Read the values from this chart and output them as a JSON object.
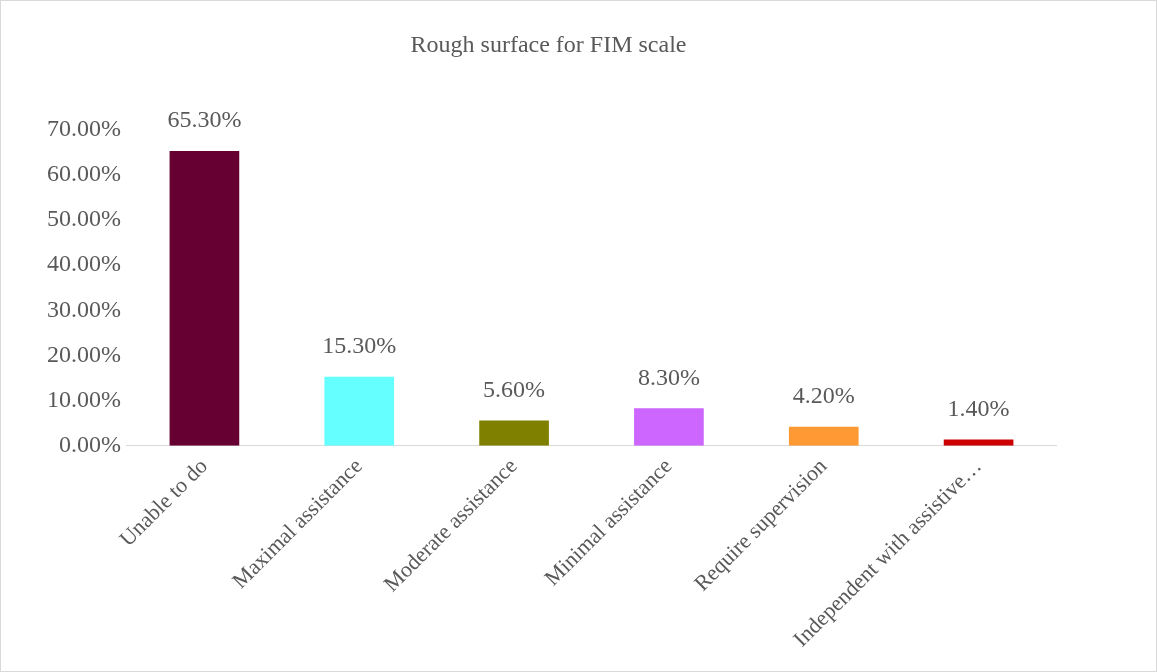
{
  "chart_data": {
    "type": "bar",
    "title": "Rough surface for FIM scale",
    "categories": [
      "Unable to do",
      "Maximal assistance",
      "Moderate assistance",
      "Minimal assistance",
      "Require supervision",
      "Independent with assistive…"
    ],
    "values": [
      65.3,
      15.3,
      5.6,
      8.3,
      4.2,
      1.4
    ],
    "colors": [
      "#660033",
      "#66ffff",
      "#808000",
      "#cc66ff",
      "#ff9933",
      "#cc0000"
    ],
    "value_labels": [
      "65.30%",
      "15.30%",
      "5.60%",
      "8.30%",
      "4.20%",
      "1.40%"
    ],
    "ylim": [
      0,
      70
    ],
    "yticks": [
      {
        "value": 0,
        "label": "0.00%"
      },
      {
        "value": 10,
        "label": "10.00%"
      },
      {
        "value": 20,
        "label": "20.00%"
      },
      {
        "value": 30,
        "label": "30.00%"
      },
      {
        "value": 40,
        "label": "40.00%"
      },
      {
        "value": 50,
        "label": "50.00%"
      },
      {
        "value": 60,
        "label": "60.00%"
      },
      {
        "value": 70,
        "label": "70.00%"
      }
    ],
    "grid": false,
    "legend": false
  }
}
